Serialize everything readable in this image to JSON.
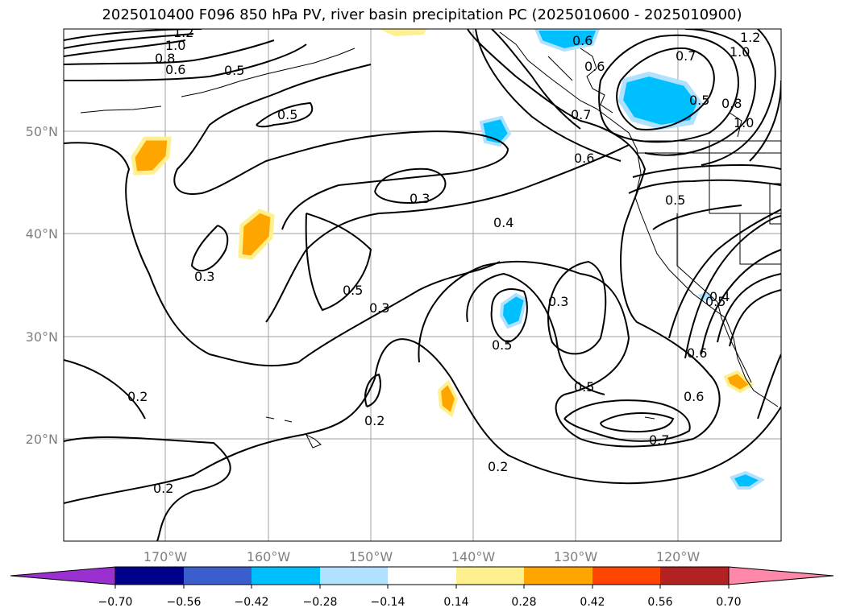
{
  "title": "2025010400 F096 850 hPa PV, river basin precipitation PC (2025010600 - 2025010900)",
  "map": {
    "lat_labels": [
      "50°N",
      "40°N",
      "30°N",
      "20°N"
    ],
    "lon_labels": [
      "170°W",
      "160°W",
      "150°W",
      "140°W",
      "130°W",
      "120°W"
    ],
    "contour_labels": [
      "1.2",
      "1.0",
      "0.8",
      "0.6",
      "0.5",
      "0.5",
      "0.3",
      "0.3",
      "0.5",
      "0.4",
      "0.3",
      "0.3",
      "0.5",
      "0.2",
      "0.2",
      "0.2",
      "0.2",
      "0.5",
      "0.6",
      "0.7",
      "0.6",
      "0.5",
      "0.6",
      "0.7",
      "0.5",
      "0.6",
      "0.7",
      "0.8",
      "1.0",
      "1.2",
      "1.0",
      "0.6",
      "0.5",
      "0.4"
    ],
    "pv_contour_levels": [
      0.2,
      0.3,
      0.4,
      0.5,
      0.6,
      0.7,
      0.8,
      1.0,
      1.2
    ]
  },
  "colorbar": {
    "ticks": [
      "−0.70",
      "−0.56",
      "−0.42",
      "−0.28",
      "−0.14",
      "0.14",
      "0.28",
      "0.42",
      "0.56",
      "0.70"
    ],
    "colors": [
      "#9b30d0",
      "#00008b",
      "#3a5fcd",
      "#00bfff",
      "#b0e2ff",
      "#ffffff",
      "#fff08f",
      "#ffa500",
      "#ff4500",
      "#b22222",
      "#ff88aa"
    ]
  }
}
